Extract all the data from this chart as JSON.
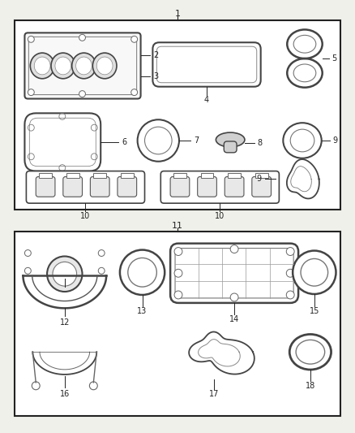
{
  "bg_color": "#f0f0eb",
  "line_color": "#222222",
  "part_color": "#444444",
  "fig_width": 4.38,
  "fig_height": 5.33,
  "dpi": 100
}
